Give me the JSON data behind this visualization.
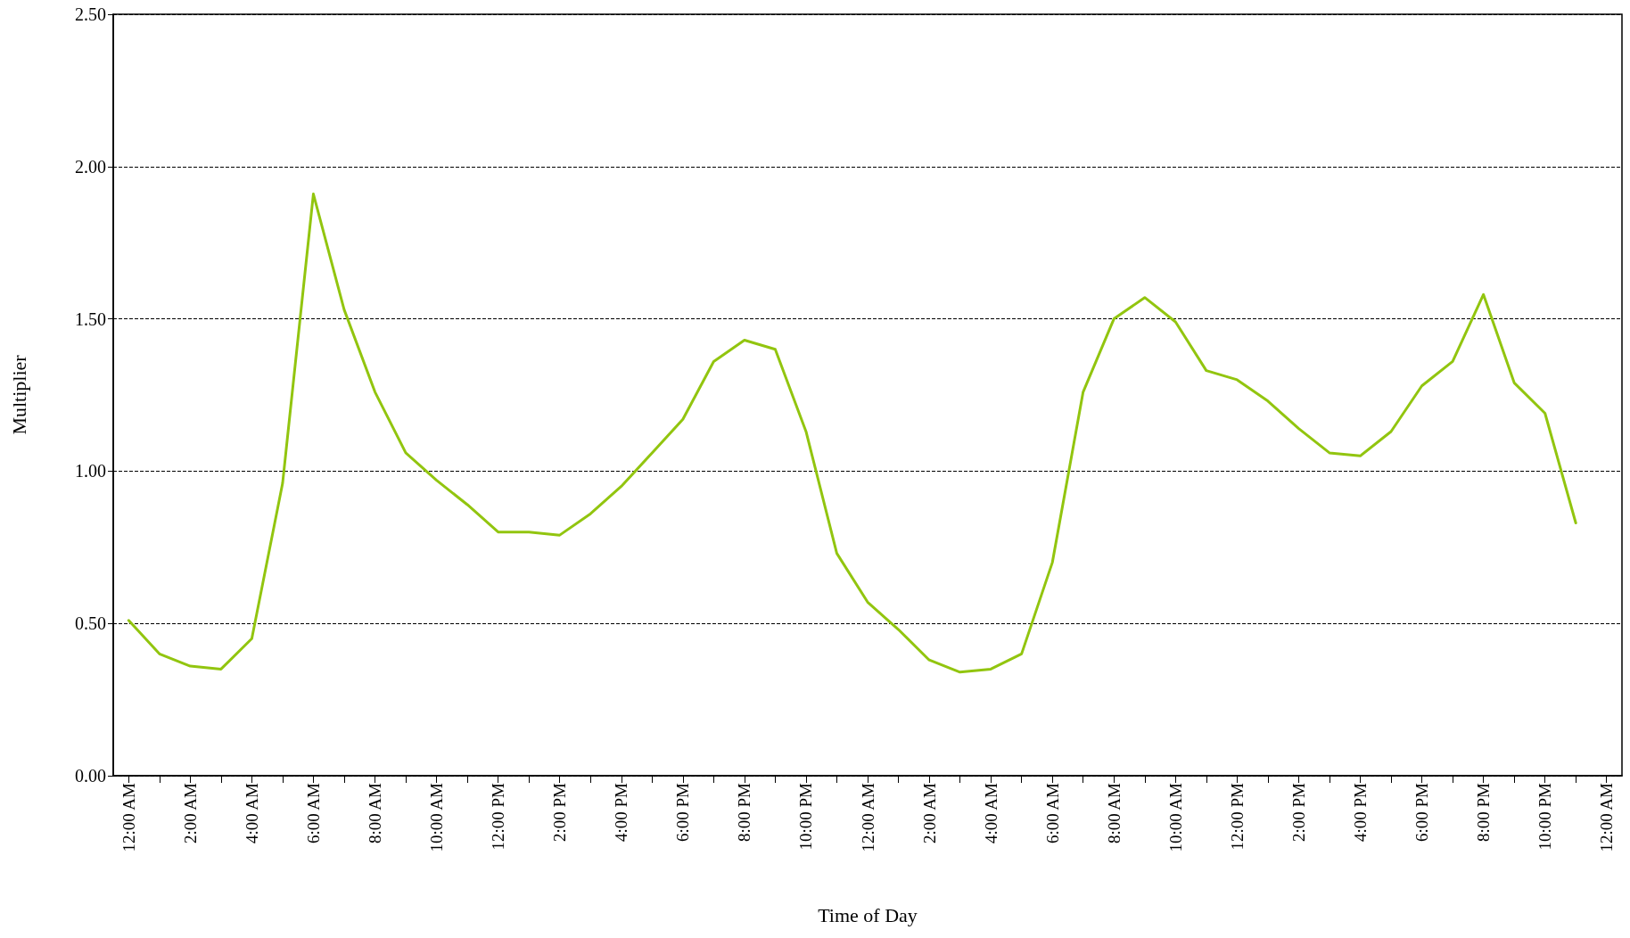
{
  "chart_data": {
    "type": "line",
    "xlabel": "Time of Day",
    "ylabel": "Multiplier",
    "categories": [
      "12:00 AM",
      null,
      "2:00 AM",
      null,
      "4:00 AM",
      null,
      "6:00 AM",
      null,
      "8:00 AM",
      null,
      "10:00 AM",
      null,
      "12:00 PM",
      null,
      "2:00 PM",
      null,
      "4:00 PM",
      null,
      "6:00 PM",
      null,
      "8:00 PM",
      null,
      "10:00 PM",
      null,
      "12:00 AM",
      null,
      "2:00 AM",
      null,
      "4:00 AM",
      null,
      "6:00 AM",
      null,
      "8:00 AM",
      null,
      "10:00 AM",
      null,
      "12:00 PM",
      null,
      "2:00 PM",
      null,
      "4:00 PM",
      null,
      "6:00 PM",
      null,
      "8:00 PM",
      null,
      "10:00 PM",
      null,
      "12:00 AM"
    ],
    "series": [
      {
        "color": "#92c50f",
        "values": [
          0.51,
          0.4,
          0.36,
          0.35,
          0.45,
          0.96,
          1.91,
          1.53,
          1.26,
          1.06,
          0.97,
          0.89,
          0.8,
          0.8,
          0.79,
          0.86,
          0.95,
          1.06,
          1.17,
          1.36,
          1.43,
          1.4,
          1.13,
          0.73,
          0.57,
          0.48,
          0.38,
          0.34,
          0.35,
          0.4,
          0.7,
          1.26,
          1.5,
          1.57,
          1.49,
          1.33,
          1.3,
          1.23,
          1.14,
          1.06,
          1.05,
          1.13,
          1.28,
          1.36,
          1.58,
          1.29,
          1.19,
          0.83,
          null
        ]
      }
    ],
    "ylim": [
      0,
      2.5
    ],
    "yticks": [
      {
        "value": 0,
        "label": "0.00"
      },
      {
        "value": 0.5,
        "label": "0.50"
      },
      {
        "value": 1,
        "label": "1.00"
      },
      {
        "value": 1.5,
        "label": "1.50"
      },
      {
        "value": 2,
        "label": "2.00"
      },
      {
        "value": 2.5,
        "label": "2.50"
      }
    ],
    "grid": "y",
    "marker": "none",
    "line_style": "solid"
  }
}
